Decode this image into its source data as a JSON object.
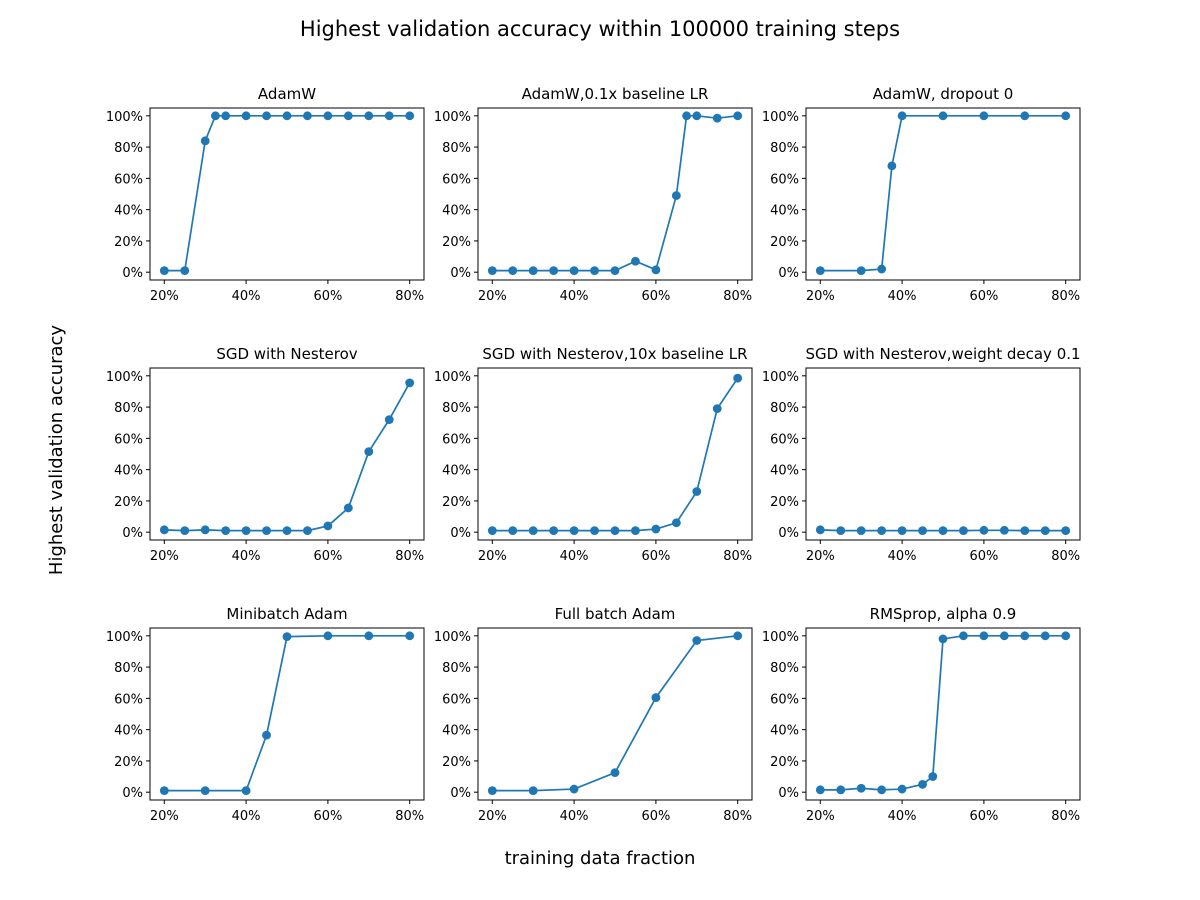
{
  "figure": {
    "title": "Highest validation accuracy within 100000 training steps",
    "xlabel": "training data fraction",
    "ylabel": "Highest validation accuracy"
  },
  "colors": {
    "series": "#1f77b4"
  },
  "chart_data": [
    {
      "type": "line",
      "title": "AdamW",
      "xlim": [
        0.165,
        0.835
      ],
      "ylim": [
        -0.05,
        1.05
      ],
      "xticks": [
        0.2,
        0.4,
        0.6,
        0.8
      ],
      "xtick_labels": [
        "20%",
        "40%",
        "60%",
        "80%"
      ],
      "yticks": [
        0,
        0.2,
        0.4,
        0.6,
        0.8,
        1.0
      ],
      "ytick_labels": [
        "0%",
        "20%",
        "40%",
        "60%",
        "80%",
        "100%"
      ],
      "x": [
        0.2,
        0.25,
        0.3,
        0.325,
        0.35,
        0.4,
        0.45,
        0.5,
        0.55,
        0.6,
        0.65,
        0.7,
        0.75,
        0.8
      ],
      "y": [
        0.01,
        0.01,
        0.84,
        1.0,
        1.0,
        1.0,
        1.0,
        1.0,
        1.0,
        1.0,
        1.0,
        1.0,
        1.0,
        1.0
      ]
    },
    {
      "type": "line",
      "title": "AdamW,0.1x baseline LR",
      "xlim": [
        0.165,
        0.835
      ],
      "ylim": [
        -0.05,
        1.05
      ],
      "xticks": [
        0.2,
        0.4,
        0.6,
        0.8
      ],
      "xtick_labels": [
        "20%",
        "40%",
        "60%",
        "80%"
      ],
      "yticks": [
        0,
        0.2,
        0.4,
        0.6,
        0.8,
        1.0
      ],
      "ytick_labels": [
        "0%",
        "20%",
        "40%",
        "60%",
        "80%",
        "100%"
      ],
      "x": [
        0.2,
        0.25,
        0.3,
        0.35,
        0.4,
        0.45,
        0.5,
        0.55,
        0.6,
        0.65,
        0.675,
        0.7,
        0.75,
        0.8
      ],
      "y": [
        0.01,
        0.01,
        0.01,
        0.01,
        0.01,
        0.01,
        0.01,
        0.07,
        0.015,
        0.49,
        1.0,
        1.0,
        0.985,
        1.0
      ]
    },
    {
      "type": "line",
      "title": "AdamW, dropout 0",
      "xlim": [
        0.165,
        0.835
      ],
      "ylim": [
        -0.05,
        1.05
      ],
      "xticks": [
        0.2,
        0.4,
        0.6,
        0.8
      ],
      "xtick_labels": [
        "20%",
        "40%",
        "60%",
        "80%"
      ],
      "yticks": [
        0,
        0.2,
        0.4,
        0.6,
        0.8,
        1.0
      ],
      "ytick_labels": [
        "0%",
        "20%",
        "40%",
        "60%",
        "80%",
        "100%"
      ],
      "x": [
        0.2,
        0.3,
        0.35,
        0.375,
        0.4,
        0.5,
        0.6,
        0.7,
        0.8
      ],
      "y": [
        0.01,
        0.01,
        0.02,
        0.68,
        1.0,
        1.0,
        1.0,
        1.0,
        1.0
      ]
    },
    {
      "type": "line",
      "title": "SGD with Nesterov",
      "xlim": [
        0.165,
        0.835
      ],
      "ylim": [
        -0.05,
        1.05
      ],
      "xticks": [
        0.2,
        0.4,
        0.6,
        0.8
      ],
      "xtick_labels": [
        "20%",
        "40%",
        "60%",
        "80%"
      ],
      "yticks": [
        0,
        0.2,
        0.4,
        0.6,
        0.8,
        1.0
      ],
      "ytick_labels": [
        "0%",
        "20%",
        "40%",
        "60%",
        "80%",
        "100%"
      ],
      "x": [
        0.2,
        0.25,
        0.3,
        0.35,
        0.4,
        0.45,
        0.5,
        0.55,
        0.6,
        0.65,
        0.7,
        0.75,
        0.8
      ],
      "y": [
        0.015,
        0.01,
        0.015,
        0.01,
        0.01,
        0.01,
        0.01,
        0.01,
        0.04,
        0.155,
        0.515,
        0.72,
        0.955
      ]
    },
    {
      "type": "line",
      "title": "SGD with Nesterov,10x baseline LR",
      "xlim": [
        0.165,
        0.835
      ],
      "ylim": [
        -0.05,
        1.05
      ],
      "xticks": [
        0.2,
        0.4,
        0.6,
        0.8
      ],
      "xtick_labels": [
        "20%",
        "40%",
        "60%",
        "80%"
      ],
      "yticks": [
        0,
        0.2,
        0.4,
        0.6,
        0.8,
        1.0
      ],
      "ytick_labels": [
        "0%",
        "20%",
        "40%",
        "60%",
        "80%",
        "100%"
      ],
      "x": [
        0.2,
        0.25,
        0.3,
        0.35,
        0.4,
        0.45,
        0.5,
        0.55,
        0.6,
        0.65,
        0.7,
        0.75,
        0.8
      ],
      "y": [
        0.01,
        0.01,
        0.01,
        0.01,
        0.01,
        0.01,
        0.01,
        0.01,
        0.02,
        0.06,
        0.26,
        0.79,
        0.985
      ]
    },
    {
      "type": "line",
      "title": "SGD with Nesterov,weight decay 0.1",
      "xlim": [
        0.165,
        0.835
      ],
      "ylim": [
        -0.05,
        1.05
      ],
      "xticks": [
        0.2,
        0.4,
        0.6,
        0.8
      ],
      "xtick_labels": [
        "20%",
        "40%",
        "60%",
        "80%"
      ],
      "yticks": [
        0,
        0.2,
        0.4,
        0.6,
        0.8,
        1.0
      ],
      "ytick_labels": [
        "0%",
        "20%",
        "40%",
        "60%",
        "80%",
        "100%"
      ],
      "x": [
        0.2,
        0.25,
        0.3,
        0.35,
        0.4,
        0.45,
        0.5,
        0.55,
        0.6,
        0.65,
        0.7,
        0.75,
        0.8
      ],
      "y": [
        0.015,
        0.01,
        0.01,
        0.01,
        0.01,
        0.01,
        0.01,
        0.01,
        0.012,
        0.012,
        0.01,
        0.01,
        0.01
      ]
    },
    {
      "type": "line",
      "title": "Minibatch Adam",
      "xlim": [
        0.165,
        0.835
      ],
      "ylim": [
        -0.05,
        1.05
      ],
      "xticks": [
        0.2,
        0.4,
        0.6,
        0.8
      ],
      "xtick_labels": [
        "20%",
        "40%",
        "60%",
        "80%"
      ],
      "yticks": [
        0,
        0.2,
        0.4,
        0.6,
        0.8,
        1.0
      ],
      "ytick_labels": [
        "0%",
        "20%",
        "40%",
        "60%",
        "80%",
        "100%"
      ],
      "x": [
        0.2,
        0.3,
        0.4,
        0.45,
        0.5,
        0.6,
        0.7,
        0.8
      ],
      "y": [
        0.01,
        0.01,
        0.01,
        0.365,
        0.995,
        1.0,
        1.0,
        1.0
      ]
    },
    {
      "type": "line",
      "title": "Full batch Adam",
      "xlim": [
        0.165,
        0.835
      ],
      "ylim": [
        -0.05,
        1.05
      ],
      "xticks": [
        0.2,
        0.4,
        0.6,
        0.8
      ],
      "xtick_labels": [
        "20%",
        "40%",
        "60%",
        "80%"
      ],
      "yticks": [
        0,
        0.2,
        0.4,
        0.6,
        0.8,
        1.0
      ],
      "ytick_labels": [
        "0%",
        "20%",
        "40%",
        "60%",
        "80%",
        "100%"
      ],
      "x": [
        0.2,
        0.3,
        0.4,
        0.5,
        0.6,
        0.7,
        0.8
      ],
      "y": [
        0.01,
        0.01,
        0.02,
        0.125,
        0.605,
        0.97,
        1.0
      ]
    },
    {
      "type": "line",
      "title": "RMSprop, alpha 0.9",
      "xlim": [
        0.165,
        0.835
      ],
      "ylim": [
        -0.05,
        1.05
      ],
      "xticks": [
        0.2,
        0.4,
        0.6,
        0.8
      ],
      "xtick_labels": [
        "20%",
        "40%",
        "60%",
        "80%"
      ],
      "yticks": [
        0,
        0.2,
        0.4,
        0.6,
        0.8,
        1.0
      ],
      "ytick_labels": [
        "0%",
        "20%",
        "40%",
        "60%",
        "80%",
        "100%"
      ],
      "x": [
        0.2,
        0.25,
        0.3,
        0.35,
        0.4,
        0.45,
        0.475,
        0.5,
        0.55,
        0.6,
        0.65,
        0.7,
        0.75,
        0.8
      ],
      "y": [
        0.015,
        0.015,
        0.025,
        0.015,
        0.02,
        0.05,
        0.1,
        0.98,
        1.0,
        1.0,
        1.0,
        1.0,
        1.0,
        1.0
      ]
    }
  ]
}
